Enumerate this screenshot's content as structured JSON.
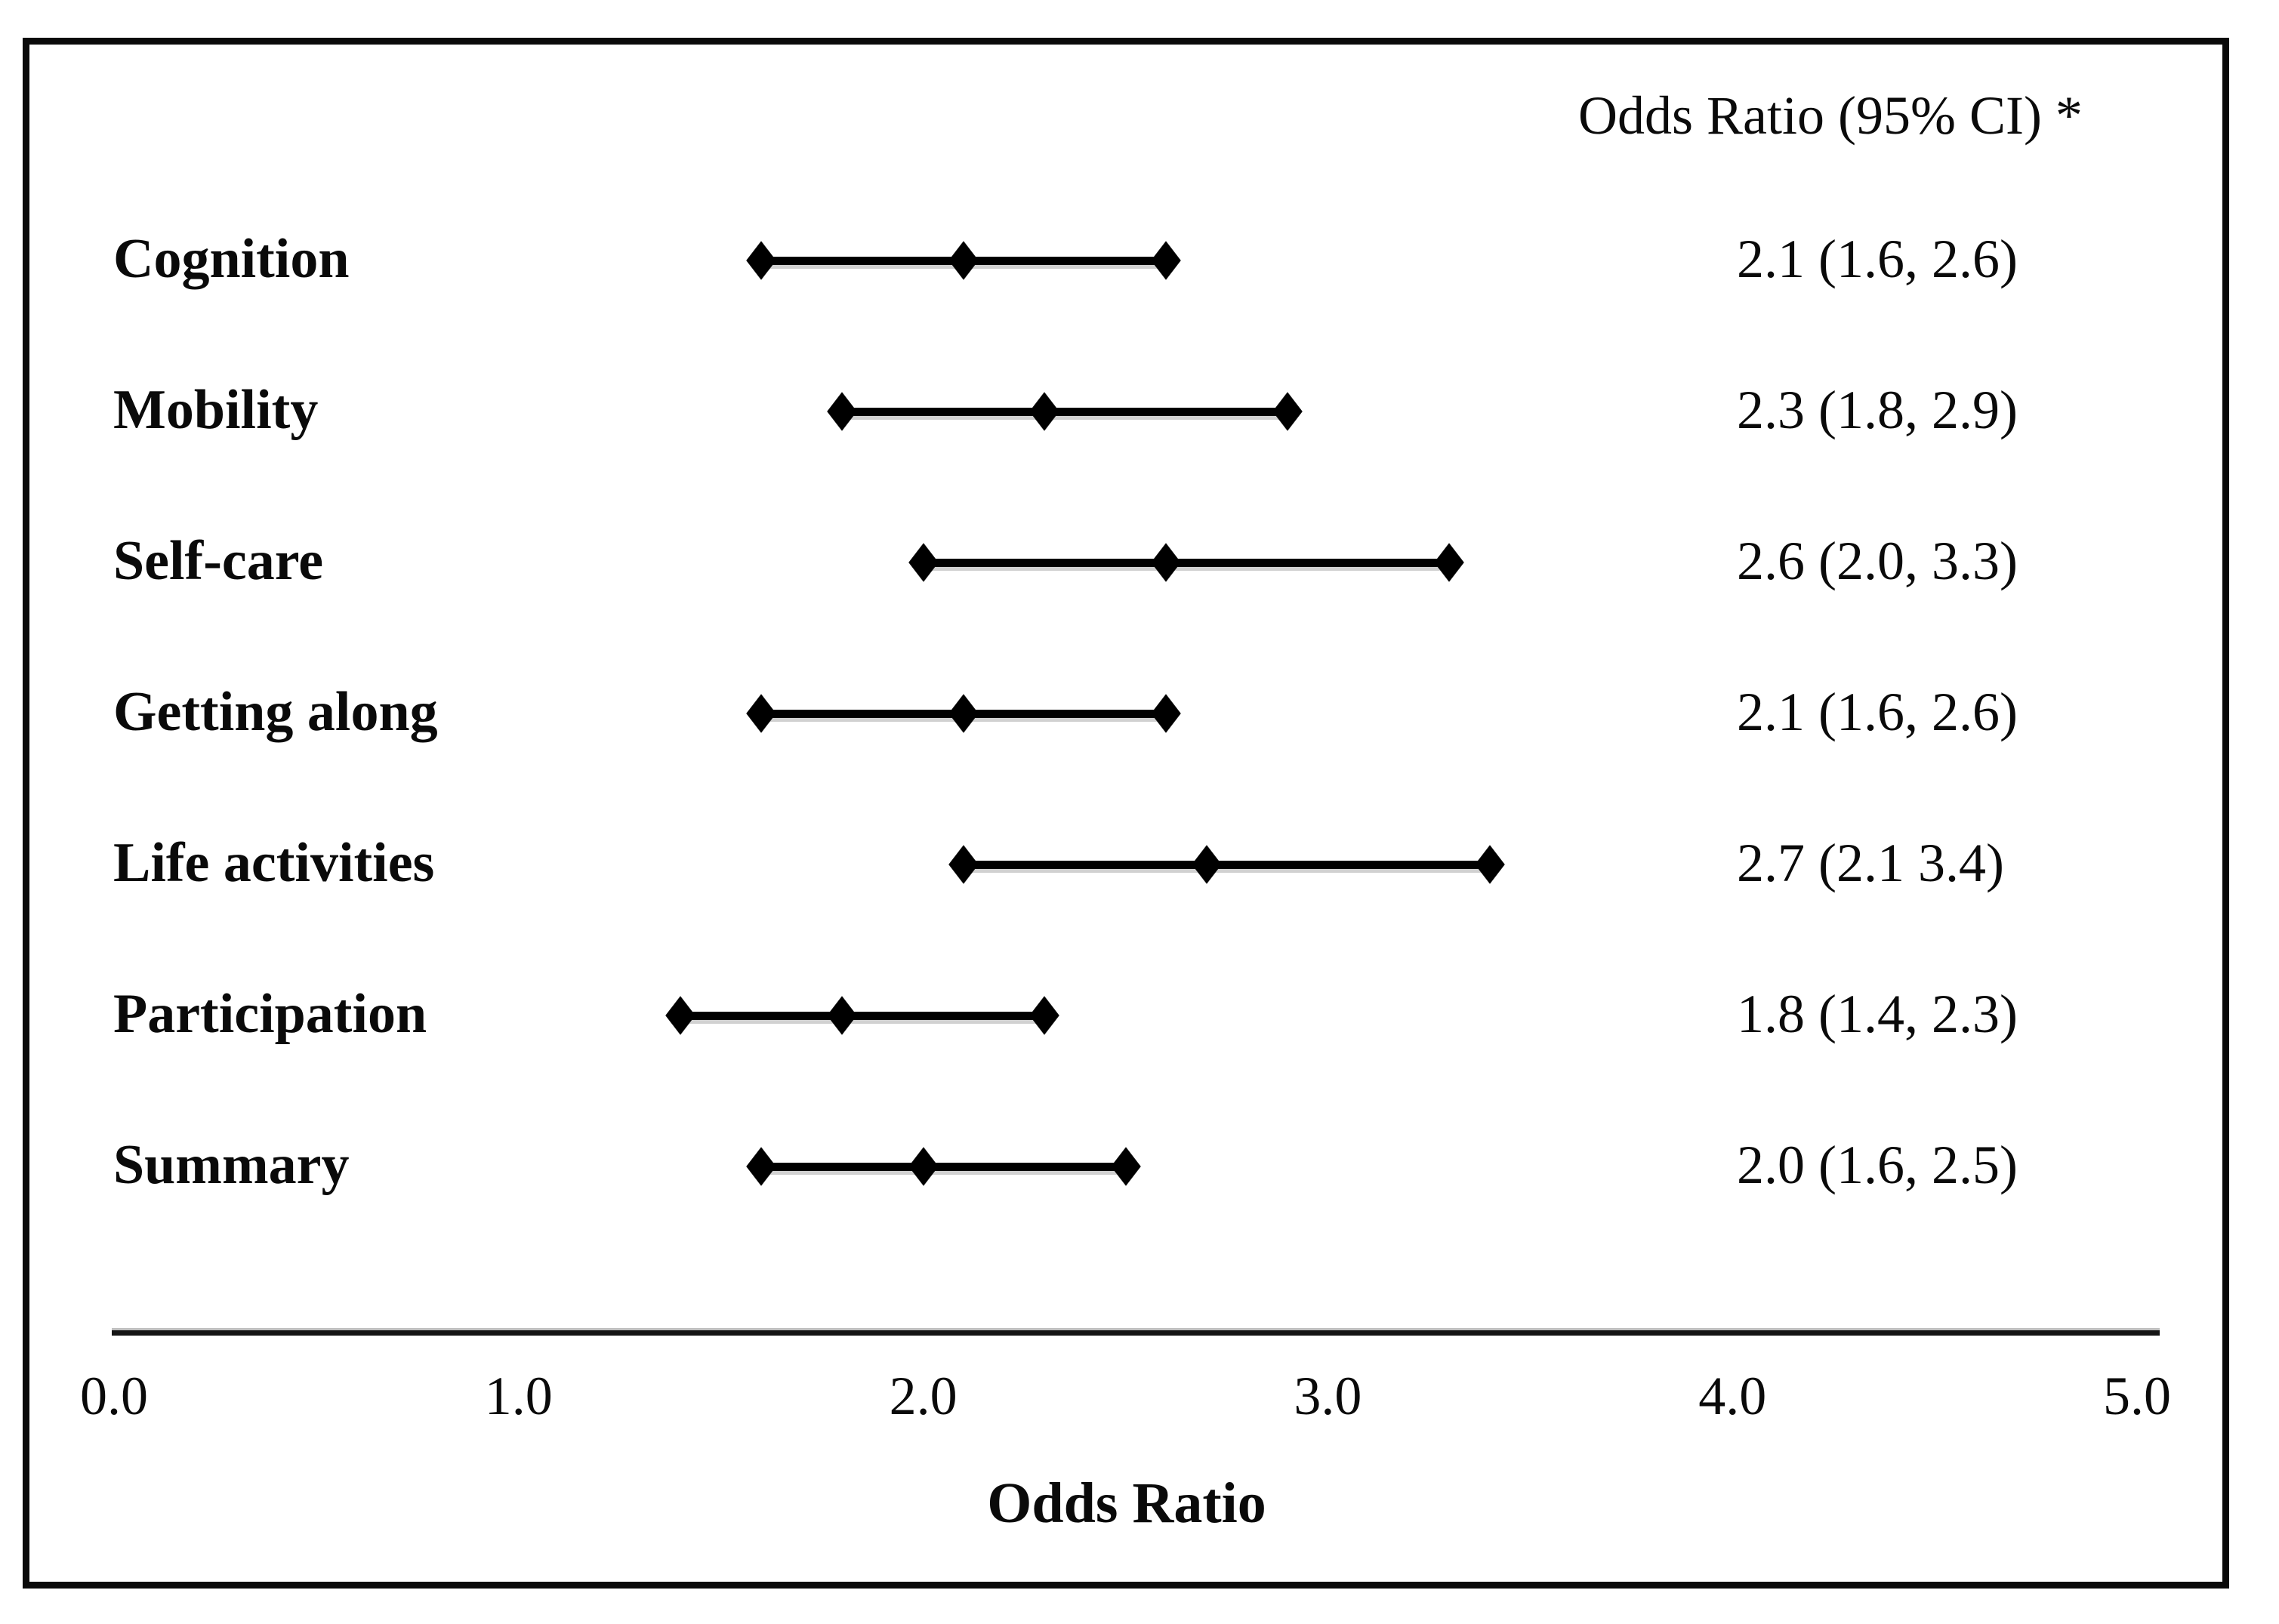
{
  "header": {
    "ci_column_label": "Odds Ratio (95% CI) *"
  },
  "chart_data": {
    "type": "forest",
    "title": "",
    "xlabel": "Odds Ratio",
    "ylabel": "",
    "xlim": [
      0.0,
      5.0
    ],
    "grid": false,
    "x_ticks": [
      "0.0",
      "1.0",
      "2.0",
      "3.0",
      "4.0",
      "5.0"
    ],
    "x_tick_values": [
      0.0,
      1.0,
      2.0,
      3.0,
      4.0,
      5.0
    ],
    "rows": [
      {
        "label": "Cognition",
        "or": 2.1,
        "ci_low": 1.6,
        "ci_high": 2.6,
        "display": "2.1 (1.6, 2.6)"
      },
      {
        "label": "Mobility",
        "or": 2.3,
        "ci_low": 1.8,
        "ci_high": 2.9,
        "display": "2.3 (1.8, 2.9)"
      },
      {
        "label": "Self-care",
        "or": 2.6,
        "ci_low": 2.0,
        "ci_high": 3.3,
        "display": "2.6 (2.0, 3.3)"
      },
      {
        "label": "Getting along",
        "or": 2.1,
        "ci_low": 1.6,
        "ci_high": 2.6,
        "display": "2.1 (1.6, 2.6)"
      },
      {
        "label": "Life activities",
        "or": 2.7,
        "ci_low": 2.1,
        "ci_high": 3.4,
        "display": "2.7 (2.1 3.4)"
      },
      {
        "label": "Participation",
        "or": 1.8,
        "ci_low": 1.4,
        "ci_high": 2.3,
        "display": "1.8 (1.4, 2.3)"
      },
      {
        "label": "Summary",
        "or": 2.0,
        "ci_low": 1.6,
        "ci_high": 2.5,
        "display": "2.0 (1.6, 2.5)"
      }
    ]
  }
}
